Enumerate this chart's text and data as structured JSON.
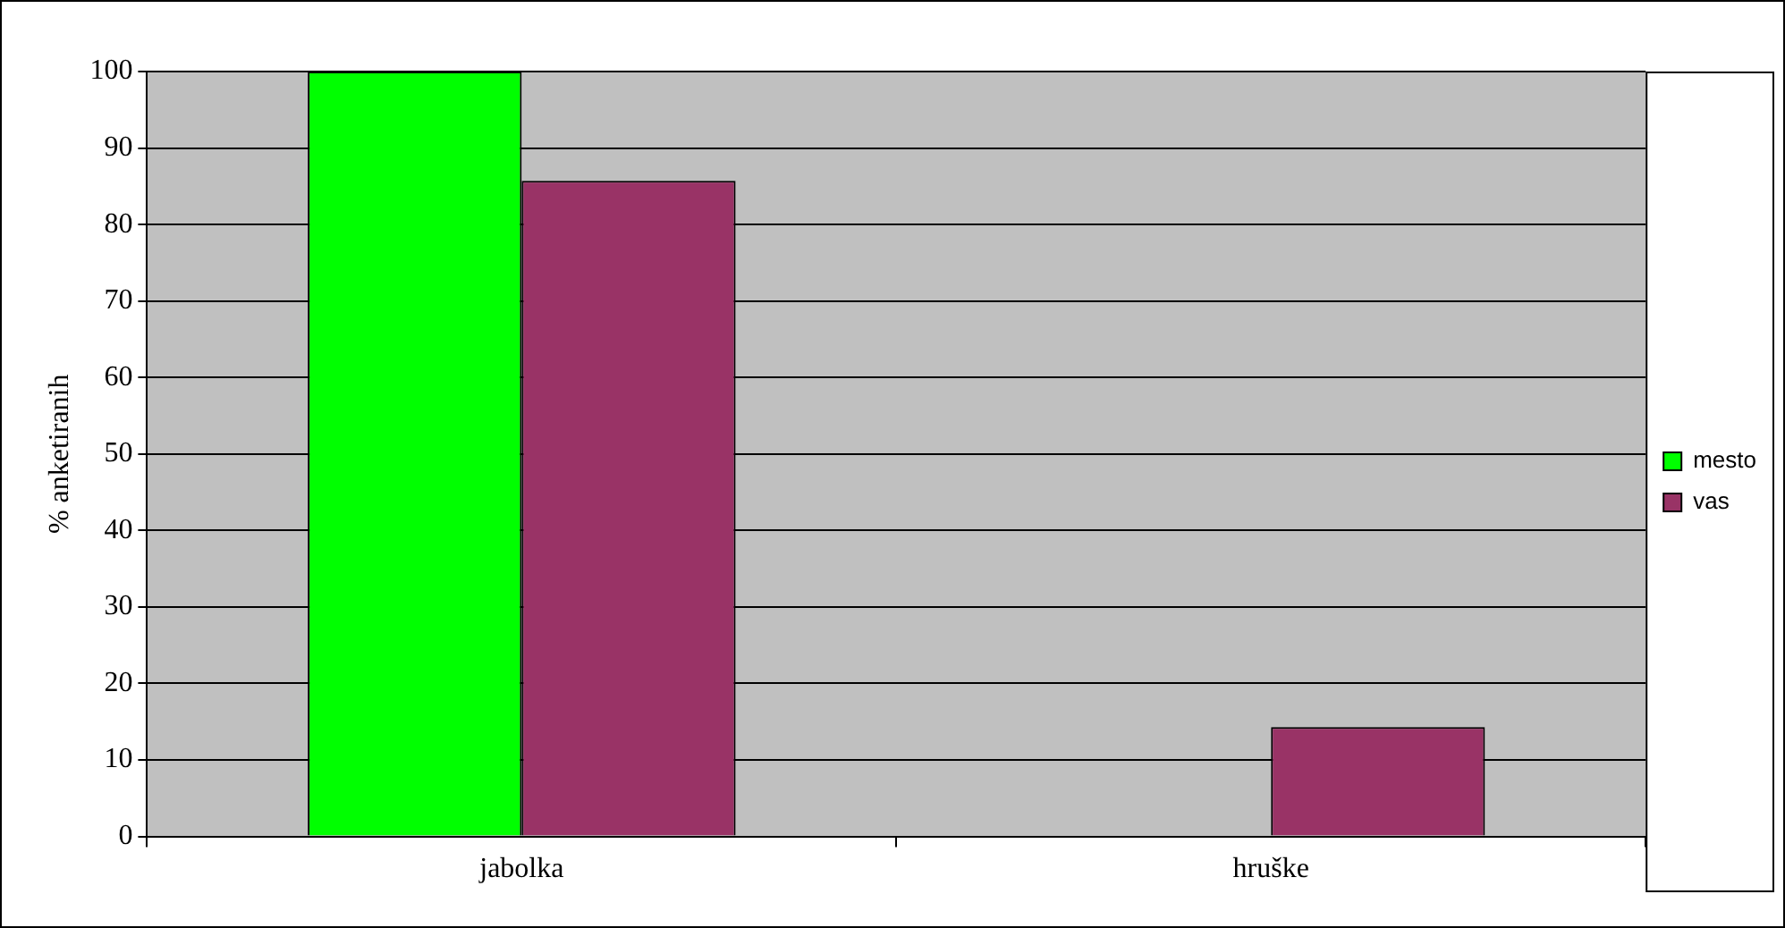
{
  "chart_data": {
    "type": "bar",
    "ylabel": "% anketiranih",
    "categories": [
      "jabolka",
      "hruške"
    ],
    "series": [
      {
        "name": "mesto",
        "color": "#00ff00",
        "values": [
          100,
          0
        ]
      },
      {
        "name": "vas",
        "color": "#993366",
        "values": [
          85.7,
          14.3
        ]
      }
    ],
    "ylim": [
      0,
      100
    ],
    "yticks": [
      0,
      10,
      20,
      30,
      40,
      50,
      60,
      70,
      80,
      90,
      100
    ],
    "grid": "y",
    "legend": "right"
  }
}
